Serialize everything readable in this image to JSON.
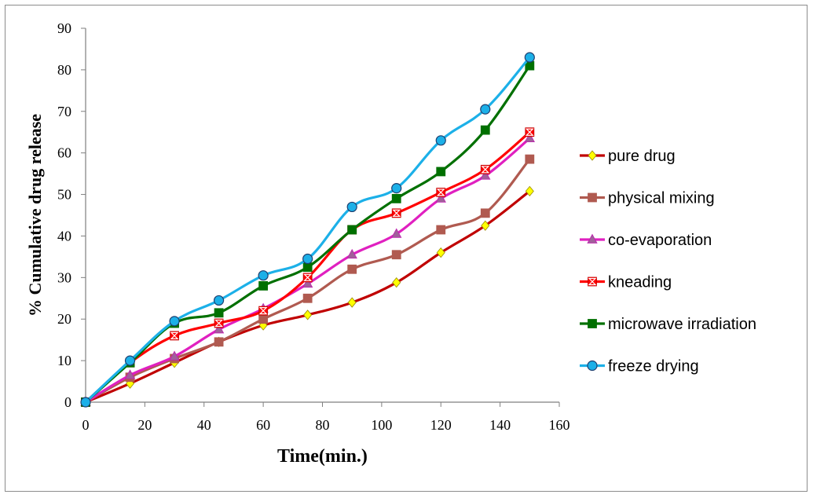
{
  "chart_data": {
    "type": "line",
    "xlabel": "Time(min.)",
    "ylabel": "% Cumulative drug release",
    "xlim": [
      0,
      160
    ],
    "ylim": [
      0,
      90
    ],
    "xticks": [
      0,
      20,
      40,
      60,
      80,
      100,
      120,
      140,
      160
    ],
    "yticks": [
      0,
      10,
      20,
      30,
      40,
      50,
      60,
      70,
      80,
      90
    ],
    "grid": false,
    "legend_position": "right",
    "x": [
      0,
      15,
      30,
      45,
      60,
      75,
      90,
      105,
      120,
      135,
      150
    ],
    "series": [
      {
        "name": "pure drug",
        "color": "#c00000",
        "marker": "diamond",
        "marker_color": "#ffff00",
        "values": [
          0,
          4.5,
          9.5,
          14.5,
          18.5,
          21,
          24,
          28.8,
          36,
          42.5,
          50.8
        ]
      },
      {
        "name": "physical mixing",
        "color": "#b05a50",
        "marker": "square",
        "marker_color": "#b05a50",
        "values": [
          0,
          6,
          10.5,
          14.5,
          20,
          25,
          32,
          35.5,
          41.5,
          45.5,
          58.5
        ]
      },
      {
        "name": "co-evaporation",
        "color": "#e020c0",
        "marker": "triangle",
        "marker_color": "#a0609a",
        "values": [
          0,
          6.5,
          11,
          17.5,
          22.5,
          28.5,
          35.5,
          40.5,
          49,
          54.5,
          63.5
        ]
      },
      {
        "name": "kneading",
        "color": "#ff0000",
        "marker": "hourglass",
        "marker_color": "#ff0000",
        "values": [
          0,
          9.5,
          16,
          19,
          22,
          30,
          41.5,
          45.5,
          50.5,
          56,
          65
        ]
      },
      {
        "name": "microwave irradiation",
        "color": "#007000",
        "marker": "square",
        "marker_color": "#007000",
        "values": [
          0,
          9.5,
          19,
          21.5,
          28,
          32.5,
          41.5,
          49,
          55.5,
          65.5,
          81
        ]
      },
      {
        "name": "freeze drying",
        "color": "#1cb0e8",
        "marker": "circle",
        "marker_color": "#1cb0e8",
        "values": [
          0,
          10,
          19.5,
          24.5,
          30.5,
          34.5,
          47,
          51.5,
          63,
          70.5,
          83
        ]
      }
    ]
  }
}
